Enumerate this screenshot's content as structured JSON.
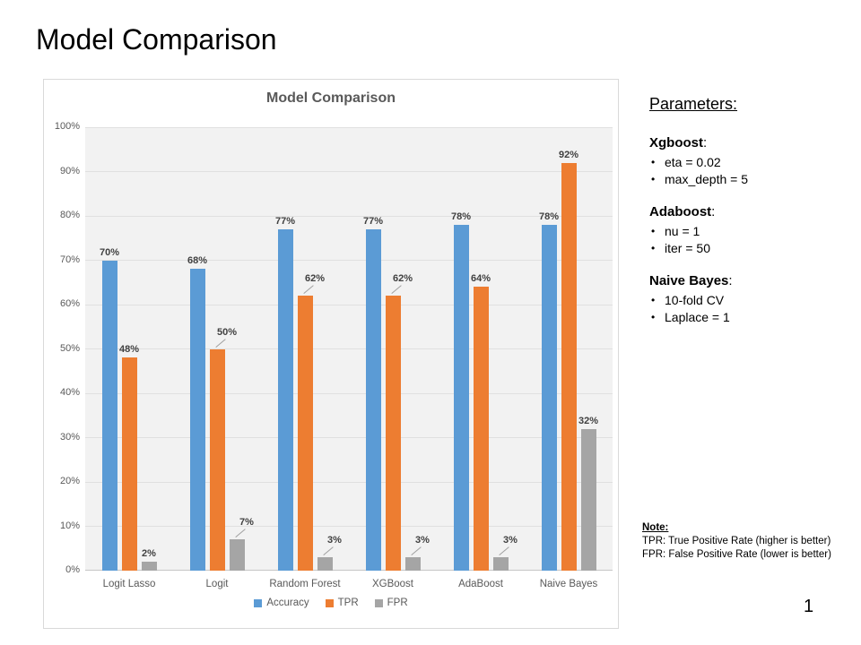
{
  "slide": {
    "title": "Model Comparison",
    "page_number": "1"
  },
  "chart_data": {
    "type": "bar",
    "title": "Model Comparison",
    "categories": [
      "Logit Lasso",
      "Logit",
      "Random Forest",
      "XGBoost",
      "AdaBoost",
      "Naive Bayes"
    ],
    "series": [
      {
        "name": "Accuracy",
        "color": "#5B9BD5",
        "values": [
          70,
          68,
          77,
          77,
          78,
          78
        ],
        "leader_lines": [
          false,
          false,
          false,
          false,
          false,
          false
        ]
      },
      {
        "name": "TPR",
        "color": "#ED7D31",
        "values": [
          48,
          50,
          62,
          62,
          64,
          92
        ],
        "leader_lines": [
          false,
          true,
          true,
          true,
          false,
          false
        ]
      },
      {
        "name": "FPR",
        "color": "#A5A5A5",
        "values": [
          2,
          7,
          3,
          3,
          3,
          32
        ],
        "leader_lines": [
          false,
          true,
          true,
          true,
          true,
          false
        ]
      }
    ],
    "xlabel": "",
    "ylabel": "",
    "ylim": [
      0,
      100
    ],
    "y_ticks": [
      "0%",
      "10%",
      "20%",
      "30%",
      "40%",
      "50%",
      "60%",
      "70%",
      "80%",
      "90%",
      "100%"
    ],
    "data_label_format": "percent",
    "grid": true,
    "legend_position": "bottom"
  },
  "parameters": {
    "heading": "Parameters:",
    "name_suffix": ":",
    "sections": [
      {
        "name": "Xgboost",
        "items": [
          "eta = 0.02",
          "max_depth = 5"
        ]
      },
      {
        "name": "Adaboost",
        "items": [
          "nu = 1",
          "iter = 50"
        ]
      },
      {
        "name": "Naive Bayes",
        "items": [
          "10-fold CV",
          "Laplace = 1"
        ]
      }
    ]
  },
  "note": {
    "heading": "Note:",
    "lines": [
      "TPR:  True Positive Rate  (higher is better)",
      "FPR:  False Positive Rate  (lower is better)"
    ]
  }
}
